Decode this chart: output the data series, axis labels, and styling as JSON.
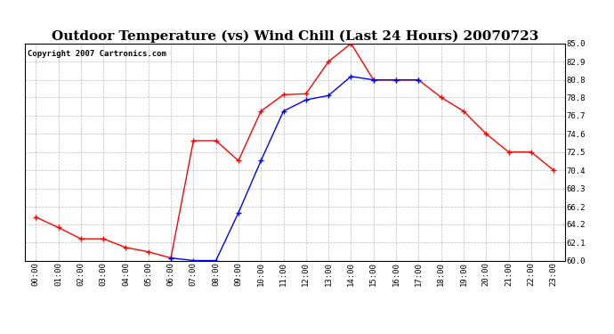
{
  "title": "Outdoor Temperature (vs) Wind Chill (Last 24 Hours) 20070723",
  "copyright_text": "Copyright 2007 Cartronics.com",
  "hours": [
    "00:00",
    "01:00",
    "02:00",
    "03:00",
    "04:00",
    "05:00",
    "06:00",
    "07:00",
    "08:00",
    "09:00",
    "10:00",
    "11:00",
    "12:00",
    "13:00",
    "14:00",
    "15:00",
    "16:00",
    "17:00",
    "18:00",
    "19:00",
    "20:00",
    "21:00",
    "22:00",
    "23:00"
  ],
  "temp": [
    65.0,
    63.8,
    62.5,
    62.5,
    61.5,
    61.0,
    60.3,
    73.8,
    73.8,
    71.5,
    77.2,
    79.1,
    79.2,
    82.9,
    85.0,
    80.8,
    80.8,
    80.8,
    78.8,
    77.2,
    74.6,
    72.5,
    72.5,
    70.4
  ],
  "wind_chill": [
    null,
    null,
    null,
    null,
    null,
    null,
    60.3,
    60.0,
    60.0,
    65.5,
    71.5,
    77.2,
    78.5,
    79.0,
    81.2,
    80.8,
    80.8,
    80.8,
    null,
    null,
    null,
    null,
    null,
    null
  ],
  "ylim": [
    60.0,
    85.0
  ],
  "yticks": [
    60.0,
    62.1,
    64.2,
    66.2,
    68.3,
    70.4,
    72.5,
    74.6,
    76.7,
    78.8,
    80.8,
    82.9,
    85.0
  ],
  "temp_color": "#FF0000",
  "wind_chill_color": "#0000FF",
  "grid_color": "#AAAAAA",
  "background_color": "#FFFFFF",
  "title_fontsize": 11,
  "copyright_fontsize": 6.5
}
